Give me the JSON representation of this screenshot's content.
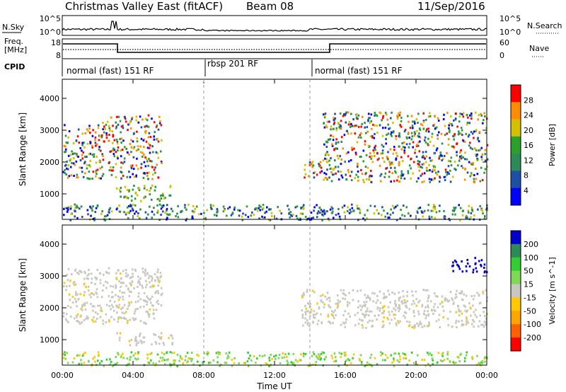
{
  "header": {
    "station": "Christmas Valley East (fitACF)",
    "beam": "Beam 08",
    "date": "11/Sep/2016"
  },
  "top_panels": {
    "nsky_label": "N.Sky",
    "nsky_ticks": [
      "10^5",
      "10^0"
    ],
    "nsearch_label": "N.Search",
    "freq_label_1": "Freq.",
    "freq_label_2": "[MHz]",
    "freq_ticks": [
      "18",
      "8"
    ],
    "nave_ticks": [
      "60",
      "0"
    ],
    "nave_label": "Nave",
    "cpid_label": "CPID",
    "cpid_segments": [
      {
        "label": "normal (fast) 151 RF",
        "start_h": 0,
        "end_h": 8
      },
      {
        "label": "rbsp 201 RF",
        "start_h": 8,
        "end_h": 14
      },
      {
        "label": "normal (fast) 151 RF",
        "start_h": 14,
        "end_h": 24
      }
    ]
  },
  "chart_data": [
    {
      "type": "heatmap",
      "panel": "power",
      "ylabel": "Slant Range [km]",
      "xlabel": "",
      "x_range_hours": [
        0,
        24
      ],
      "ylim": [
        200,
        4600
      ],
      "yticks": [
        "1000",
        "2000",
        "3000",
        "4000"
      ],
      "colorbar_label": "Power [dB]",
      "colorbar_ticks": [
        "4",
        "8",
        "12",
        "16",
        "20",
        "24",
        "28"
      ],
      "colors": [
        "#0000ff",
        "#1f4fa5",
        "#2e8b57",
        "#2ca02c",
        "#d4c000",
        "#ff8c00",
        "#ff0000"
      ],
      "echo_regions": [
        {
          "t0": 0.0,
          "t1": 2.7,
          "r0": 1500,
          "r1": 3300,
          "level": "mixed"
        },
        {
          "t0": 2.7,
          "t1": 5.6,
          "r0": 1500,
          "r1": 3500,
          "level": "mixed"
        },
        {
          "t0": 3.0,
          "t1": 6.2,
          "r0": 800,
          "r1": 1300,
          "level": "medium"
        },
        {
          "t0": 13.5,
          "t1": 14.7,
          "r0": 1500,
          "r1": 2100,
          "level": "mixed"
        },
        {
          "t0": 14.7,
          "t1": 24.0,
          "r0": 1400,
          "r1": 3600,
          "level": "mixed"
        },
        {
          "t0": 0.0,
          "t1": 24.0,
          "r0": 200,
          "r1": 700,
          "level": "low"
        }
      ]
    },
    {
      "type": "heatmap",
      "panel": "velocity",
      "ylabel": "Slant Range [km]",
      "xlabel": "Time UT",
      "x_range_hours": [
        0,
        24
      ],
      "xticks": [
        "00:00",
        "04:00",
        "08:00",
        "12:00",
        "16:00",
        "20:00",
        "00:00"
      ],
      "ylim": [
        200,
        4600
      ],
      "yticks": [
        "1000",
        "2000",
        "3000",
        "4000"
      ],
      "colorbar_label": "Velocity [m s^-1]",
      "colorbar_ticks": [
        "200",
        "100",
        "50",
        "15",
        "-15",
        "-50",
        "-100",
        "-200"
      ],
      "colors": [
        "#0000cd",
        "#2e8b57",
        "#32cd32",
        "#7ed957",
        "#c8c8c0",
        "#ffc800",
        "#ffa500",
        "#ff6000",
        "#ff0000"
      ],
      "echo_regions": [
        {
          "t0": 0.0,
          "t1": 5.6,
          "r0": 1500,
          "r1": 3300,
          "level": "near-zero"
        },
        {
          "t0": 3.0,
          "t1": 6.2,
          "r0": 850,
          "r1": 1250,
          "level": "near-zero"
        },
        {
          "t0": 13.5,
          "t1": 24.0,
          "r0": 1400,
          "r1": 2600,
          "level": "near-zero"
        },
        {
          "t0": 22.0,
          "t1": 24.0,
          "r0": 3100,
          "r1": 3600,
          "level": "positive-high"
        },
        {
          "t0": 0.0,
          "t1": 24.0,
          "r0": 200,
          "r1": 650,
          "level": "small-positive"
        }
      ]
    }
  ]
}
